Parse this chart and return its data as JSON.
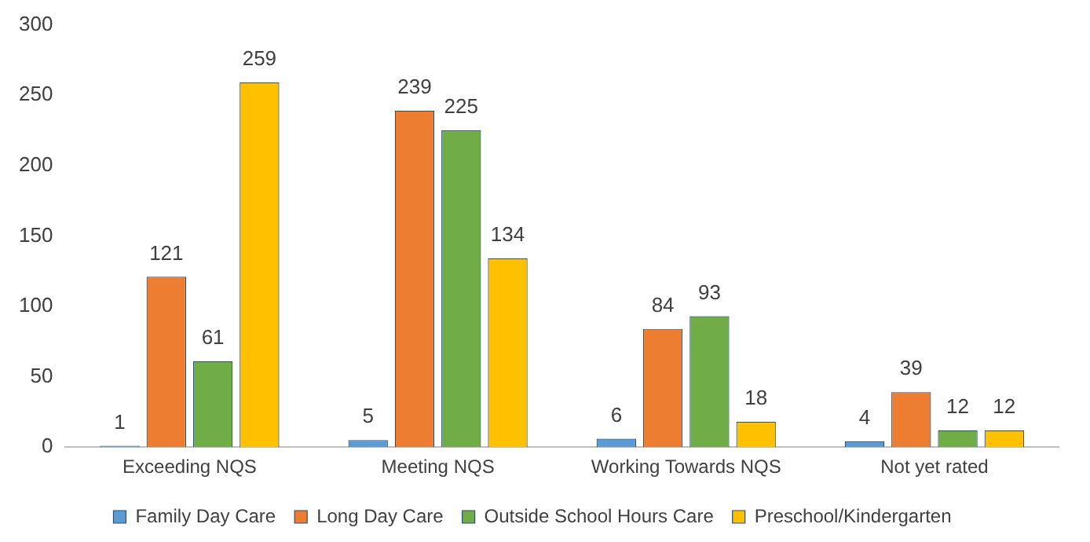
{
  "chart_data": {
    "type": "bar",
    "categories": [
      "Exceeding NQS",
      "Meeting NQS",
      "Working Towards NQS",
      "Not yet rated"
    ],
    "series": [
      {
        "name": "Family Day Care",
        "color": "#5b9bd5",
        "values": [
          1,
          5,
          6,
          4
        ]
      },
      {
        "name": "Long Day Care",
        "color": "#ed7d31",
        "values": [
          121,
          239,
          84,
          39
        ]
      },
      {
        "name": "Outside School Hours Care",
        "color": "#70ad47",
        "values": [
          61,
          225,
          93,
          12
        ]
      },
      {
        "name": "Preschool/Kindergarten",
        "color": "#ffc000",
        "values": [
          259,
          134,
          18,
          12
        ]
      }
    ],
    "ylim": [
      0,
      300
    ],
    "yticks": [
      0,
      50,
      100,
      150,
      200,
      250,
      300
    ],
    "grid": false,
    "legend": "bottom",
    "data_labels": true
  }
}
